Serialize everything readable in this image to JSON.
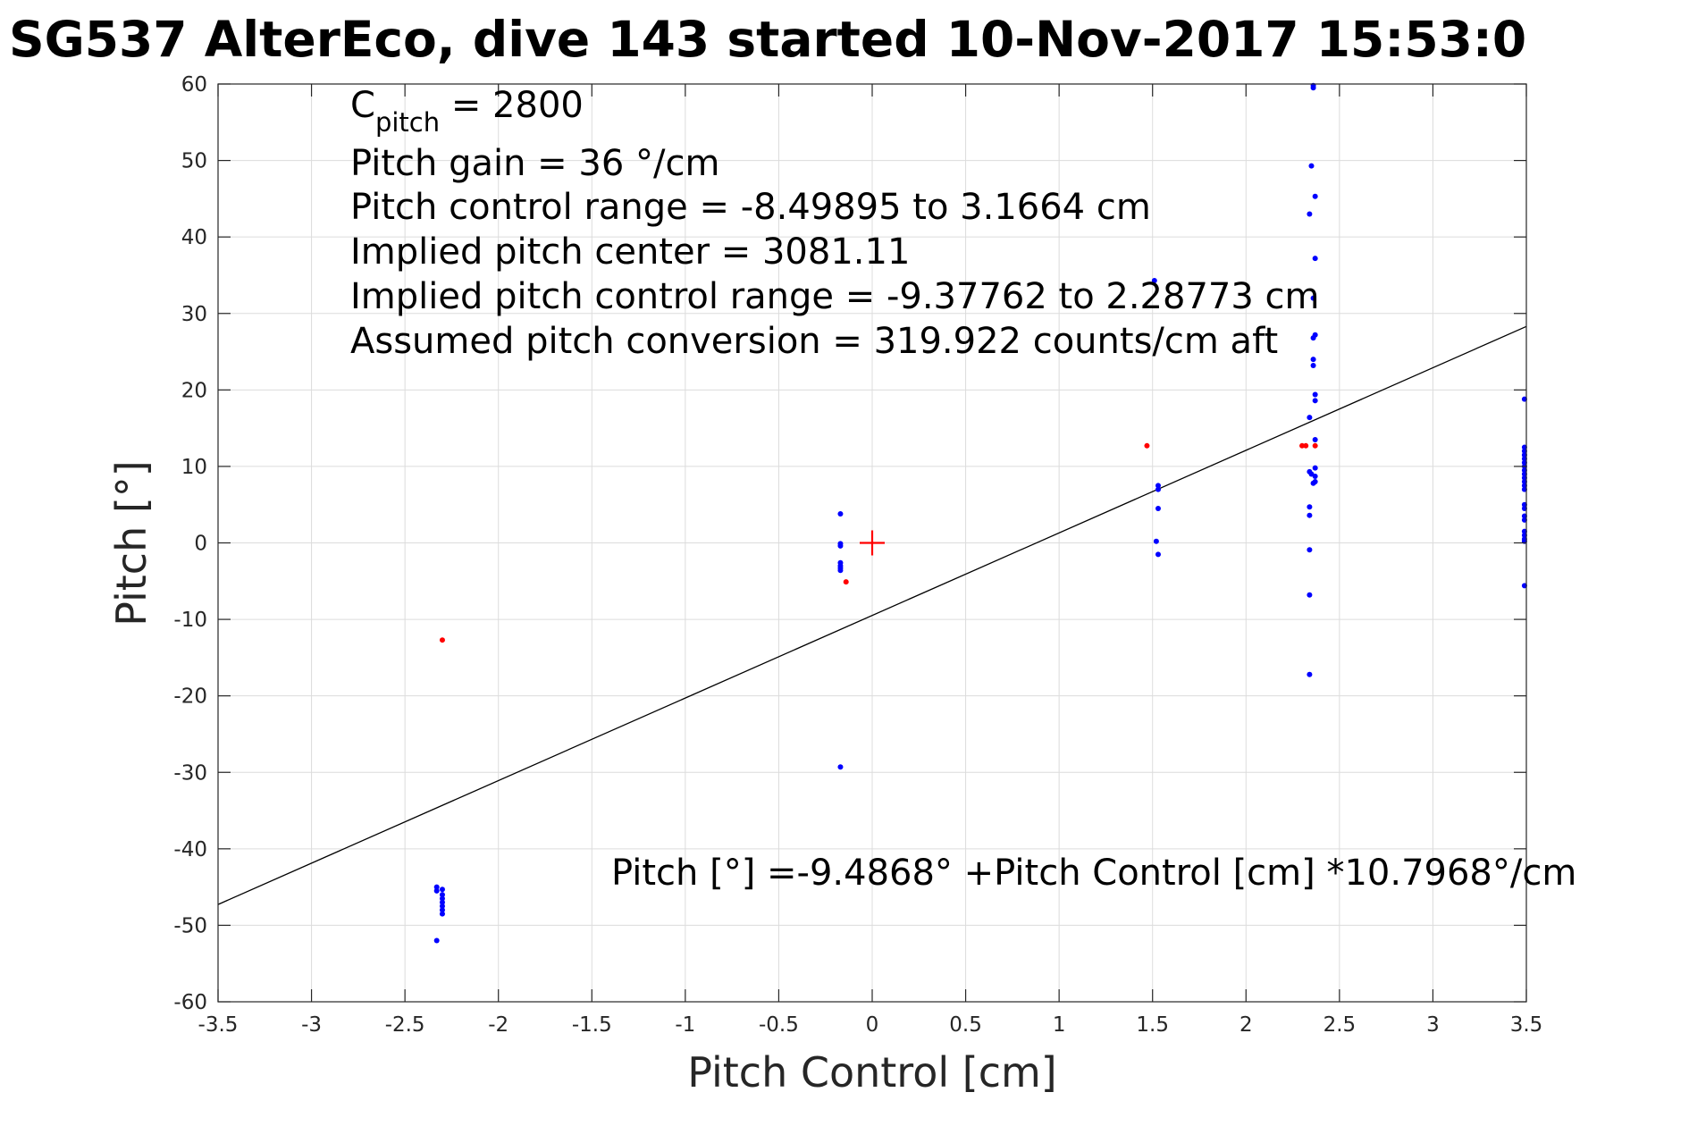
{
  "chart_data": {
    "type": "scatter",
    "title": "SG537 AlterEco, dive 143 started 10-Nov-2017 15:53:0",
    "xlabel": "Pitch Control [cm]",
    "ylabel": "Pitch [°]",
    "xlim": [
      -3.5,
      3.5
    ],
    "ylim": [
      -60,
      60
    ],
    "xticks": [
      -3.5,
      -3,
      -2.5,
      -2,
      -1.5,
      -1,
      -0.5,
      0,
      0.5,
      1,
      1.5,
      2,
      2.5,
      3,
      3.5
    ],
    "xtick_labels": [
      "-3.5",
      "-3",
      "-2.5",
      "-2",
      "-1.5",
      "-1",
      "-0.5",
      "0",
      "0.5",
      "1",
      "1.5",
      "2",
      "2.5",
      "3",
      "3.5"
    ],
    "yticks": [
      -60,
      -50,
      -40,
      -30,
      -20,
      -10,
      0,
      10,
      20,
      30,
      40,
      50,
      60
    ],
    "ytick_labels": [
      "-60",
      "-50",
      "-40",
      "-30",
      "-20",
      "-10",
      "0",
      "10",
      "20",
      "30",
      "40",
      "50",
      "60"
    ],
    "grid": true,
    "series": [
      {
        "color": "#0000ff",
        "points": [
          [
            -2.33,
            -45
          ],
          [
            -2.33,
            -45.5
          ],
          [
            -2.3,
            -45.3
          ],
          [
            -2.3,
            -46
          ],
          [
            -2.3,
            -46.5
          ],
          [
            -2.3,
            -47
          ],
          [
            -2.3,
            -47.5
          ],
          [
            -2.3,
            -48
          ],
          [
            -2.3,
            -48.5
          ],
          [
            -2.33,
            -52
          ],
          [
            -0.17,
            3.8
          ],
          [
            -0.17,
            -0.1
          ],
          [
            -0.17,
            -0.4
          ],
          [
            -0.17,
            -2.6
          ],
          [
            -0.17,
            -3.0
          ],
          [
            -0.17,
            -3.3
          ],
          [
            -0.17,
            -3.6
          ],
          [
            -0.17,
            -29.3
          ],
          [
            1.51,
            34.3
          ],
          [
            1.53,
            7.5
          ],
          [
            1.53,
            7.0
          ],
          [
            1.53,
            4.5
          ],
          [
            1.52,
            0.2
          ],
          [
            1.53,
            -1.5
          ],
          [
            2.36,
            59.5
          ],
          [
            2.36,
            59.8
          ],
          [
            2.35,
            49.3
          ],
          [
            2.37,
            45.3
          ],
          [
            2.34,
            43.0
          ],
          [
            2.37,
            37.2
          ],
          [
            2.36,
            32.0
          ],
          [
            2.37,
            27.2
          ],
          [
            2.36,
            26.8
          ],
          [
            2.36,
            24.0
          ],
          [
            2.36,
            23.2
          ],
          [
            2.37,
            19.4
          ],
          [
            2.37,
            18.6
          ],
          [
            2.34,
            16.4
          ],
          [
            2.37,
            13.5
          ],
          [
            2.34,
            9.3
          ],
          [
            2.35,
            9.0
          ],
          [
            2.37,
            9.8
          ],
          [
            2.37,
            8.7
          ],
          [
            2.37,
            8.0
          ],
          [
            2.36,
            7.8
          ],
          [
            2.34,
            4.7
          ],
          [
            2.34,
            3.6
          ],
          [
            2.34,
            -0.9
          ],
          [
            2.34,
            -6.8
          ],
          [
            2.34,
            -17.2
          ],
          [
            3.49,
            18.8
          ],
          [
            3.49,
            12.5
          ],
          [
            3.49,
            12.0
          ],
          [
            3.49,
            11.5
          ],
          [
            3.49,
            11.0
          ],
          [
            3.49,
            10.5
          ],
          [
            3.49,
            10.0
          ],
          [
            3.49,
            9.5
          ],
          [
            3.49,
            9.0
          ],
          [
            3.49,
            8.5
          ],
          [
            3.49,
            8.0
          ],
          [
            3.49,
            7.5
          ],
          [
            3.49,
            7.0
          ],
          [
            3.49,
            5.0
          ],
          [
            3.49,
            4.5
          ],
          [
            3.49,
            3.5
          ],
          [
            3.49,
            3.0
          ],
          [
            3.49,
            1.5
          ],
          [
            3.49,
            1.0
          ],
          [
            3.49,
            0.5
          ],
          [
            3.49,
            0.2
          ],
          [
            3.49,
            -5.6
          ]
        ]
      },
      {
        "color": "#ff0000",
        "points": [
          [
            -2.3,
            -12.7
          ],
          [
            -0.14,
            -5.1
          ],
          [
            1.47,
            12.7
          ],
          [
            2.3,
            12.7
          ],
          [
            2.32,
            12.7
          ],
          [
            2.37,
            12.7
          ]
        ]
      }
    ],
    "center_marker": {
      "x": 0,
      "y": 0,
      "color": "#ff0000"
    },
    "fit_line": {
      "intercept": -9.4868,
      "slope": 10.7968,
      "color": "#000000"
    },
    "annotations": {
      "c_pitch_main": "C",
      "c_pitch_sub": "pitch",
      "c_pitch_value": " = 2800",
      "lines": [
        "Pitch gain = 36 °/cm",
        "Pitch control range = -8.49895 to 3.1664 cm",
        "Implied pitch center = 3081.11",
        "Implied pitch control range = -9.37762 to 2.28773 cm",
        "Assumed pitch conversion = 319.922 counts/cm aft"
      ],
      "fit_equation": "Pitch [°] =-9.4868° +Pitch Control [cm] *10.7968°/cm"
    }
  }
}
